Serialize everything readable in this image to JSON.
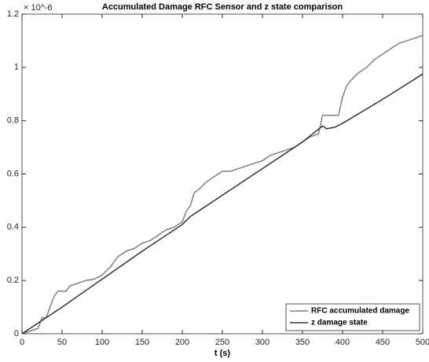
{
  "chart_data": {
    "type": "line",
    "title": "Accumulated Damage RFC Sensor and z state comparison",
    "x_label": "t (s)",
    "y_exponent_label": "× 10^-6",
    "xlim": [
      0,
      500
    ],
    "xticks": [
      0,
      50,
      100,
      150,
      200,
      250,
      300,
      350,
      400,
      450,
      500
    ],
    "ylim": [
      0,
      1.2
    ],
    "yticks": [
      0,
      0.2,
      0.4,
      0.6,
      0.8,
      1,
      1.2
    ],
    "legend": "lower right",
    "series": [
      {
        "name": "RFC accumulated damage",
        "color": "#7f7f7f",
        "x": [
          0,
          10,
          20,
          25,
          30,
          35,
          40,
          45,
          50,
          55,
          60,
          65,
          70,
          80,
          90,
          100,
          110,
          115,
          120,
          125,
          130,
          140,
          150,
          160,
          170,
          180,
          190,
          200,
          205,
          210,
          215,
          220,
          230,
          240,
          250,
          260,
          270,
          280,
          290,
          300,
          310,
          320,
          330,
          340,
          350,
          360,
          370,
          375,
          390,
          395,
          400,
          405,
          410,
          420,
          430,
          440,
          450,
          460,
          470,
          480,
          490,
          500
        ],
        "values": [
          0,
          0.01,
          0.02,
          0.06,
          0.06,
          0.1,
          0.14,
          0.16,
          0.16,
          0.16,
          0.18,
          0.185,
          0.19,
          0.2,
          0.205,
          0.22,
          0.25,
          0.27,
          0.29,
          0.3,
          0.31,
          0.32,
          0.34,
          0.35,
          0.37,
          0.39,
          0.4,
          0.42,
          0.46,
          0.48,
          0.53,
          0.54,
          0.57,
          0.59,
          0.61,
          0.61,
          0.62,
          0.63,
          0.64,
          0.65,
          0.67,
          0.68,
          0.69,
          0.7,
          0.72,
          0.74,
          0.75,
          0.82,
          0.82,
          0.82,
          0.89,
          0.93,
          0.95,
          0.98,
          1.0,
          1.03,
          1.05,
          1.07,
          1.09,
          1.1,
          1.11,
          1.12
        ]
      },
      {
        "name": "z damage state",
        "color": "#333333",
        "x": [
          0,
          50,
          100,
          150,
          200,
          210,
          250,
          300,
          350,
          375,
          380,
          390,
          400,
          450,
          500
        ],
        "values": [
          0,
          0.1,
          0.205,
          0.31,
          0.41,
          0.44,
          0.52,
          0.62,
          0.72,
          0.78,
          0.77,
          0.775,
          0.79,
          0.88,
          0.975
        ]
      }
    ]
  }
}
